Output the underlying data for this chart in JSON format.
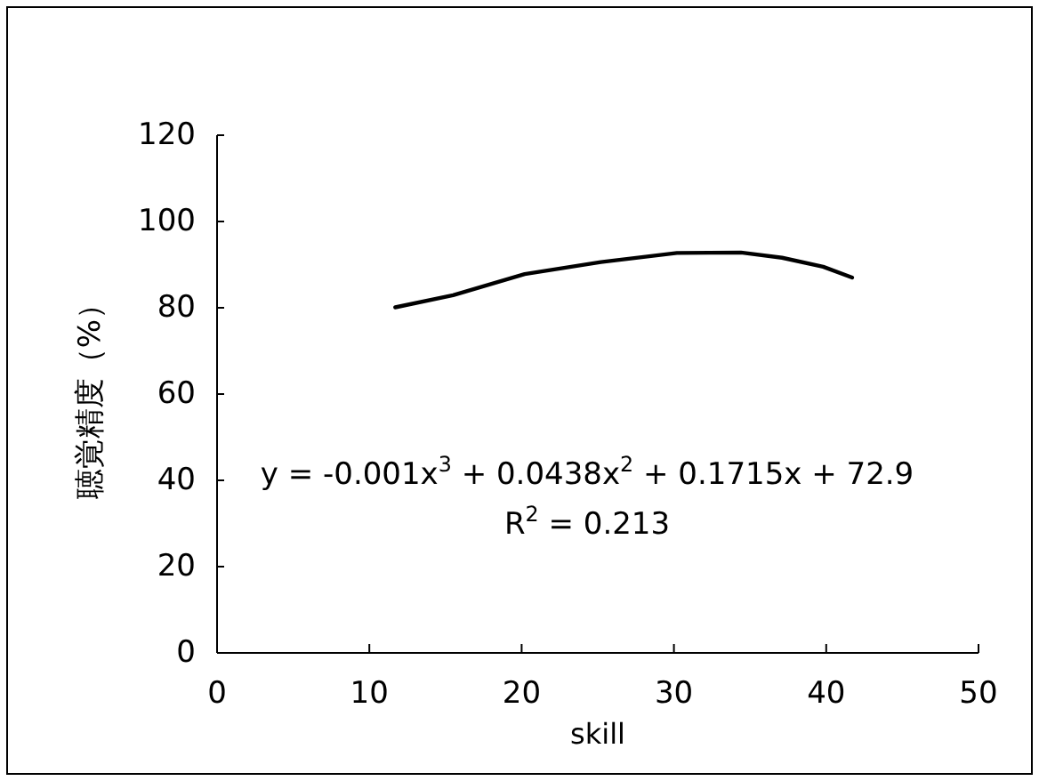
{
  "chart_data": {
    "type": "line",
    "xlabel": "skill",
    "ylabel": "聴覚精度（%）",
    "xlim": [
      0,
      50
    ],
    "xticks": [
      0,
      10,
      20,
      30,
      40,
      50
    ],
    "ylim": [
      0,
      120
    ],
    "yticks": [
      0,
      20,
      40,
      60,
      80,
      100,
      120
    ],
    "grid": false,
    "marker": "none",
    "line_style": "solid",
    "series": [
      {
        "color": "#000000",
        "x": [
          11.7,
          15.5,
          20.2,
          25.2,
          30.2,
          34.4,
          37.1,
          39.8,
          41.7
        ],
        "values": [
          80.1,
          82.9,
          87.8,
          90.6,
          92.7,
          92.8,
          91.6,
          89.5,
          87.0
        ]
      }
    ],
    "annotations": [
      "y = -0.001x$^{3}$ + 0.0438x$^{2}$ + 0.1715x + 72.9",
      "R$^{2}$ = 0.213"
    ]
  }
}
